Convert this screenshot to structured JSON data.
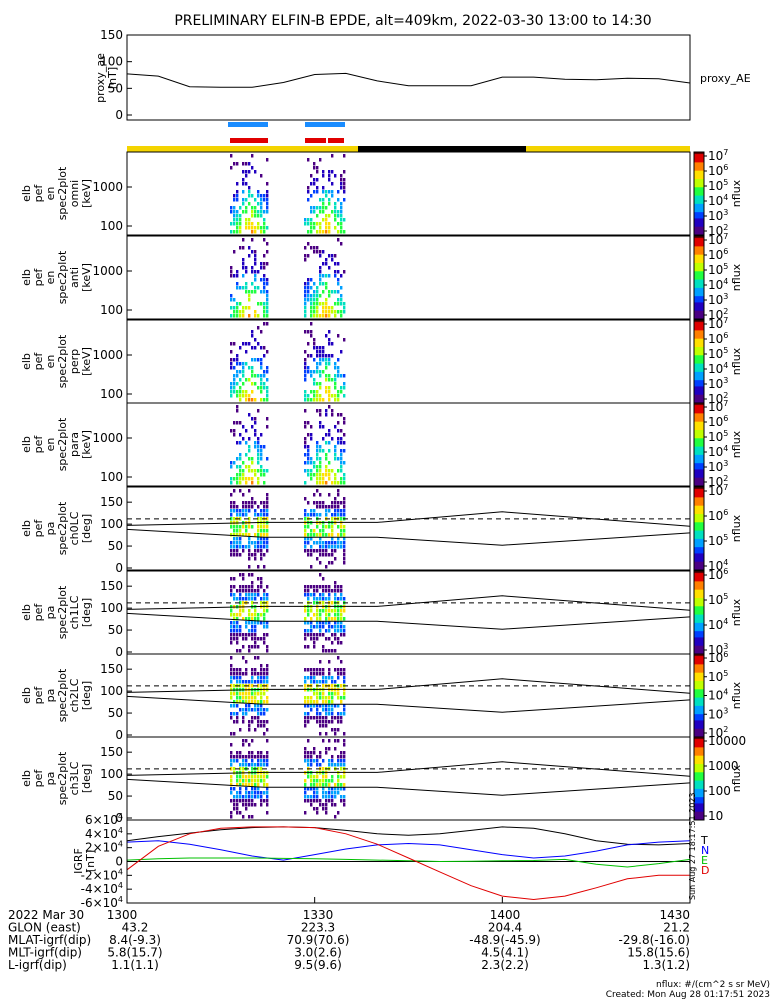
{
  "title": "PRELIMINARY ELFIN-B EPDE, alt=409km, 2022-03-30 13:00 to 14:30",
  "colors": {
    "yellow_bar": "#f4d400",
    "black_bar": "#000000",
    "blue_mark": "#1a8cff",
    "red_mark": "#e00000"
  },
  "chart_data": [
    {
      "type": "line",
      "name": "proxy_ae",
      "ylabel_lines": [
        "proxy_ae",
        "[nT]"
      ],
      "legend": "proxy_AE",
      "ylim": [
        0,
        150
      ],
      "yticks": [
        "0",
        "50",
        "100",
        "150"
      ],
      "x_minutes": [
        0,
        5,
        10,
        15,
        20,
        25,
        30,
        35,
        40,
        45,
        50,
        55,
        60,
        65,
        70,
        75,
        80,
        85,
        90
      ],
      "values": [
        77,
        73,
        53,
        52,
        52,
        61,
        76,
        78,
        64,
        55,
        55,
        55,
        71,
        71,
        67,
        66,
        69,
        68,
        60
      ]
    },
    {
      "type": "heatmap",
      "ylabel_lines": [
        "elb",
        "pef",
        "en",
        "spec2plot",
        "omni",
        "[keV]"
      ],
      "yticks": [
        "100",
        "1000"
      ],
      "cbar_ticks": [
        "10^2",
        "10^3",
        "10^4",
        "10^5",
        "10^6",
        "10^7"
      ],
      "cbar_label": "nflux"
    },
    {
      "type": "heatmap",
      "ylabel_lines": [
        "elb",
        "pef",
        "en",
        "spec2plot",
        "anti",
        "[keV]"
      ],
      "yticks": [
        "100",
        "1000"
      ],
      "cbar_ticks": [
        "10^2",
        "10^3",
        "10^4",
        "10^5",
        "10^6",
        "10^7"
      ],
      "cbar_label": "nflux"
    },
    {
      "type": "heatmap",
      "ylabel_lines": [
        "elb",
        "pef",
        "en",
        "spec2plot",
        "perp",
        "[keV]"
      ],
      "yticks": [
        "100",
        "1000"
      ],
      "cbar_ticks": [
        "10^2",
        "10^3",
        "10^4",
        "10^5",
        "10^6",
        "10^7"
      ],
      "cbar_label": "nflux"
    },
    {
      "type": "heatmap",
      "ylabel_lines": [
        "elb",
        "pef",
        "en",
        "spec2plot",
        "para",
        "[keV]"
      ],
      "yticks": [
        "100",
        "1000"
      ],
      "cbar_ticks": [
        "10^2",
        "10^3",
        "10^4",
        "10^5",
        "10^6",
        "10^7"
      ],
      "cbar_label": "nflux"
    },
    {
      "type": "heatmap",
      "ylabel_lines": [
        "elb",
        "pef",
        "pa",
        "spec2plot",
        "ch0LC",
        "[deg]"
      ],
      "yticks": [
        "0",
        "50",
        "100",
        "150"
      ],
      "cbar_ticks": [
        "10^4",
        "10^5",
        "10^6",
        "10^7"
      ],
      "cbar_label": "nflux"
    },
    {
      "type": "heatmap",
      "ylabel_lines": [
        "elb",
        "pef",
        "pa",
        "spec2plot",
        "ch1LC",
        "[deg]"
      ],
      "yticks": [
        "0",
        "50",
        "100",
        "150"
      ],
      "cbar_ticks": [
        "10^3",
        "10^4",
        "10^5",
        "10^6"
      ],
      "cbar_label": "nflux"
    },
    {
      "type": "heatmap",
      "ylabel_lines": [
        "elb",
        "pef",
        "pa",
        "spec2plot",
        "ch2LC",
        "[deg]"
      ],
      "yticks": [
        "0",
        "50",
        "100",
        "150"
      ],
      "cbar_ticks": [
        "10^2",
        "10^3",
        "10^4",
        "10^5",
        "10^6"
      ],
      "cbar_label": "nflux"
    },
    {
      "type": "heatmap",
      "ylabel_lines": [
        "elb",
        "pef",
        "pa",
        "spec2plot",
        "ch3LC",
        "[deg]"
      ],
      "yticks": [
        "0",
        "50",
        "100",
        "150"
      ],
      "cbar_ticks": [
        "10",
        "100",
        "1000",
        "10000"
      ],
      "cbar_label": "nflux"
    },
    {
      "type": "line",
      "name": "igrf",
      "ylabel_lines": [
        "IGRF",
        "[nT]"
      ],
      "ylim": [
        -60000,
        60000
      ],
      "yticks": [
        "-6×10^4",
        "-4×10^4",
        "-2×10^4",
        "0",
        "2×10^4",
        "4×10^4",
        "6×10^4"
      ],
      "legend": [
        "T",
        "N",
        "E",
        "D"
      ],
      "series": [
        {
          "name": "T",
          "color": "#000000",
          "x_minutes": [
            0,
            5,
            10,
            15,
            20,
            25,
            30,
            35,
            40,
            45,
            50,
            55,
            60,
            65,
            70,
            75,
            80,
            85,
            90
          ],
          "values": [
            30000,
            36000,
            41000,
            46000,
            49000,
            50000,
            49000,
            45000,
            40000,
            38000,
            40000,
            45000,
            50000,
            48000,
            40000,
            30000,
            25000,
            24000,
            26000
          ]
        },
        {
          "name": "N",
          "color": "#0000ff",
          "x_minutes": [
            0,
            5,
            10,
            15,
            20,
            25,
            30,
            35,
            40,
            45,
            50,
            55,
            60,
            65,
            70,
            75,
            80,
            85,
            90
          ],
          "values": [
            28000,
            30000,
            25000,
            17000,
            8000,
            2000,
            10000,
            18000,
            24000,
            26000,
            24000,
            17000,
            10000,
            5000,
            8000,
            15000,
            24000,
            28000,
            30000
          ]
        },
        {
          "name": "E",
          "color": "#00c000",
          "x_minutes": [
            0,
            5,
            10,
            15,
            20,
            25,
            30,
            35,
            40,
            45,
            50,
            55,
            60,
            65,
            70,
            75,
            80,
            85,
            90
          ],
          "values": [
            2000,
            4000,
            5000,
            5000,
            5000,
            4500,
            4000,
            3000,
            2000,
            1000,
            0,
            500,
            1000,
            1500,
            3000,
            -4000,
            -8000,
            -3000,
            3000
          ]
        },
        {
          "name": "D",
          "color": "#e00000",
          "x_minutes": [
            0,
            5,
            10,
            15,
            20,
            25,
            30,
            35,
            40,
            45,
            50,
            55,
            60,
            65,
            70,
            75,
            80,
            85,
            90
          ],
          "values": [
            -12000,
            22000,
            40000,
            48000,
            50000,
            50000,
            49000,
            40000,
            25000,
            5000,
            -15000,
            -35000,
            -50000,
            -55000,
            -50000,
            -38000,
            -25000,
            -20000,
            -20000
          ]
        }
      ]
    }
  ],
  "side_stamp": "Sun Aug 27 18:17:51 2023",
  "footer": {
    "rows": [
      [
        "2022 Mar 30",
        "1300",
        "1330",
        "1400",
        "1430"
      ],
      [
        "GLON (east)",
        "43.2",
        "223.3",
        "204.4",
        "21.2"
      ],
      [
        "MLAT-igrf(dip)",
        "8.4(-9.3)",
        "70.9(70.6)",
        "-48.9(-45.9)",
        "-29.8(-16.0)"
      ],
      [
        "MLT-igrf(dip)",
        "5.8(15.7)",
        "3.0(2.6)",
        "4.5(4.1)",
        "15.8(15.6)"
      ],
      [
        "L-igrf(dip)",
        "1.1(1.1)",
        "9.5(9.6)",
        "2.3(2.2)",
        "1.3(1.2)"
      ]
    ],
    "units": "nflux: #/(cm^2 s sr MeV)",
    "created": "Created: Mon Aug 28 01:17:51 2023"
  }
}
